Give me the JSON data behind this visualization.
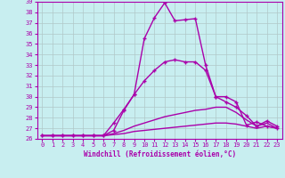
{
  "xlabel": "Windchill (Refroidissement éolien,°C)",
  "ylabel": "",
  "background_color": "#c8eef0",
  "grid_color": "#b0c8c8",
  "line_color": "#aa00aa",
  "xlim": [
    -0.5,
    23.5
  ],
  "ylim": [
    26,
    39
  ],
  "xticks": [
    0,
    1,
    2,
    3,
    4,
    5,
    6,
    7,
    8,
    9,
    10,
    11,
    12,
    13,
    14,
    15,
    16,
    17,
    18,
    19,
    20,
    21,
    22,
    23
  ],
  "yticks": [
    26,
    27,
    28,
    29,
    30,
    31,
    32,
    33,
    34,
    35,
    36,
    37,
    38,
    39
  ],
  "series": [
    {
      "x": [
        0,
        1,
        2,
        3,
        4,
        5,
        6,
        7,
        8,
        9,
        10,
        11,
        12,
        13,
        14,
        15,
        16,
        17,
        18,
        19,
        20,
        21,
        22,
        23
      ],
      "y": [
        26.3,
        26.3,
        26.3,
        26.3,
        26.3,
        26.3,
        26.3,
        26.8,
        28.7,
        30.2,
        35.5,
        37.5,
        38.9,
        37.2,
        37.3,
        37.4,
        33.0,
        30.0,
        30.0,
        29.5,
        27.3,
        27.6,
        27.2,
        27.0
      ],
      "marker": true,
      "lw": 1.0
    },
    {
      "x": [
        0,
        1,
        2,
        3,
        4,
        5,
        6,
        7,
        8,
        9,
        10,
        11,
        12,
        13,
        14,
        15,
        16,
        17,
        18,
        19,
        20,
        21,
        22,
        23
      ],
      "y": [
        26.3,
        26.3,
        26.3,
        26.3,
        26.3,
        26.3,
        26.3,
        27.5,
        28.8,
        30.2,
        31.5,
        32.5,
        33.3,
        33.5,
        33.3,
        33.3,
        32.5,
        30.0,
        29.5,
        29.0,
        28.2,
        27.2,
        27.7,
        27.2
      ],
      "marker": true,
      "lw": 1.0
    },
    {
      "x": [
        0,
        1,
        2,
        3,
        4,
        5,
        6,
        7,
        8,
        9,
        10,
        11,
        12,
        13,
        14,
        15,
        16,
        17,
        18,
        19,
        20,
        21,
        22,
        23
      ],
      "y": [
        26.3,
        26.3,
        26.3,
        26.3,
        26.3,
        26.3,
        26.3,
        26.5,
        26.8,
        27.2,
        27.5,
        27.8,
        28.1,
        28.3,
        28.5,
        28.7,
        28.8,
        29.0,
        29.0,
        28.5,
        27.8,
        27.2,
        27.5,
        27.0
      ],
      "marker": false,
      "lw": 1.0
    },
    {
      "x": [
        0,
        1,
        2,
        3,
        4,
        5,
        6,
        7,
        8,
        9,
        10,
        11,
        12,
        13,
        14,
        15,
        16,
        17,
        18,
        19,
        20,
        21,
        22,
        23
      ],
      "y": [
        26.3,
        26.3,
        26.3,
        26.3,
        26.3,
        26.3,
        26.3,
        26.4,
        26.5,
        26.7,
        26.8,
        26.9,
        27.0,
        27.1,
        27.2,
        27.3,
        27.4,
        27.5,
        27.5,
        27.4,
        27.2,
        27.0,
        27.2,
        27.0
      ],
      "marker": false,
      "lw": 1.0
    }
  ]
}
